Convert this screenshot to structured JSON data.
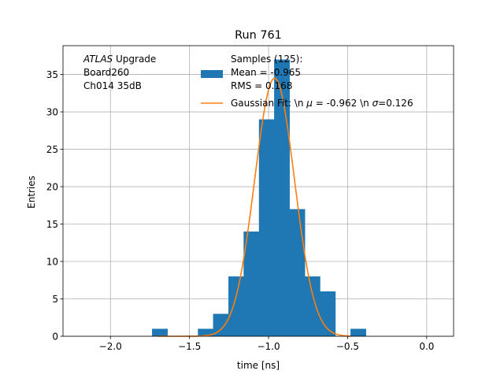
{
  "chart_data": {
    "type": "bar",
    "title": "Run 761",
    "xlabel": "time [ns]",
    "ylabel": "Entries",
    "xlim": [
      -2.3,
      0.17
    ],
    "ylim": [
      0,
      38.85
    ],
    "grid": true,
    "xticks": [
      -2.0,
      -1.5,
      -1.0,
      -0.5,
      0.0
    ],
    "xtick_labels": [
      "−2.0",
      "−1.5",
      "−1.0",
      "−0.5",
      "0.0"
    ],
    "yticks": [
      0,
      5,
      10,
      15,
      20,
      25,
      30,
      35
    ],
    "ytick_labels": [
      "0",
      "5",
      "10",
      "15",
      "20",
      "25",
      "30",
      "35"
    ],
    "annotation": {
      "lines": [
        {
          "italic": "ATLAS",
          "rest": " Upgrade"
        },
        {
          "italic": "",
          "rest": " Board260"
        },
        {
          "italic": "",
          "rest": " Ch014 35dB"
        }
      ]
    },
    "histogram": {
      "name_lines": [
        "Samples (125):",
        " Mean = -0.965",
        " RMS = 0.168"
      ],
      "color": "#1f77b4",
      "bin_width": 0.0965,
      "bin_left_edges": [
        -1.737,
        -1.447,
        -1.351,
        -1.254,
        -1.158,
        -1.061,
        -0.965,
        -0.868,
        -0.772,
        -0.675,
        -0.482
      ],
      "values": [
        1,
        1,
        3,
        8,
        14,
        29,
        37,
        17,
        8,
        6,
        1
      ]
    },
    "fit": {
      "name": "Gaussian Fit: \\n $\\mu$ = -0.962 \\n $\\sigma$=0.126",
      "name_parts": {
        "a": "Gaussian Fit: \\n ",
        "mu": "μ",
        "b": " = -0.962 \\n ",
        "sigma": "σ",
        "c": "=0.126"
      },
      "color": "#ff7f0e",
      "mu": -0.962,
      "sigma": 0.126,
      "amplitude": 34.5,
      "x_range": [
        -1.7,
        -0.48
      ]
    },
    "legend_placement": "top-center"
  }
}
